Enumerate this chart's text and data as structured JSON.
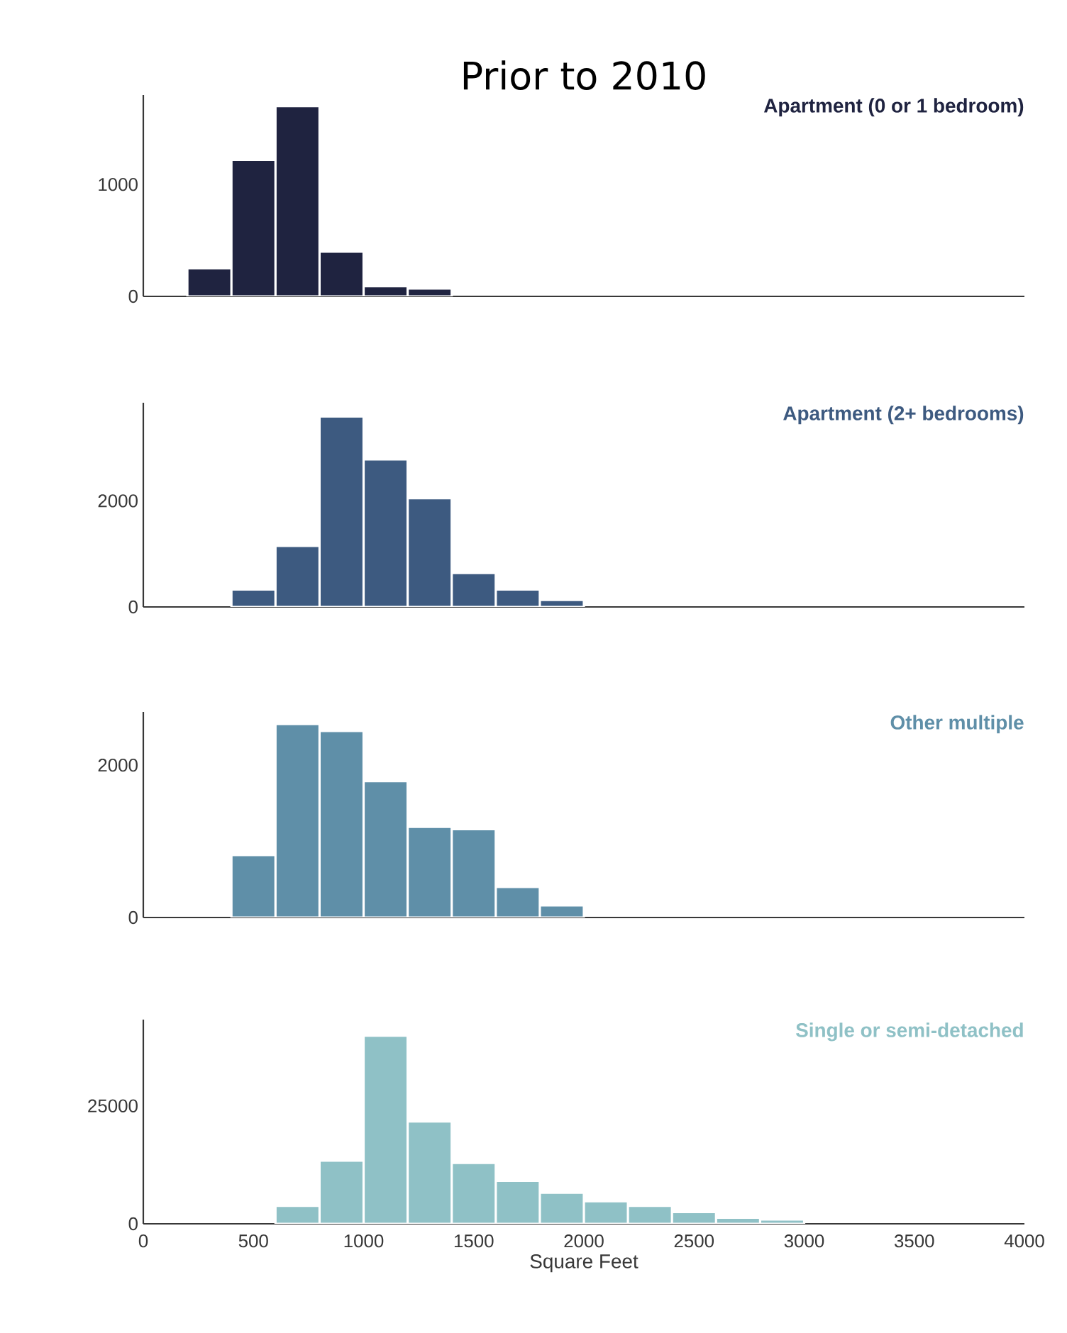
{
  "chart_data": [
    {
      "type": "histogram",
      "title": "Prior to 2010",
      "bins": [
        200,
        400,
        600,
        800,
        1000,
        1200,
        1400
      ],
      "series": [
        {
          "name": "Apartment (0 or 1 bedroom)",
          "color": "#1f2340",
          "values": [
            250,
            1220,
            1700,
            400,
            90,
            70
          ]
        }
      ],
      "xlim": [
        0,
        4000
      ],
      "ylim": [
        0,
        1800
      ],
      "yticks": [
        0,
        1000
      ],
      "tick_labels": "y",
      "legend": "top right",
      "grid": false
    },
    {
      "type": "histogram",
      "bins": [
        400,
        600,
        800,
        1000,
        1200,
        1400,
        1600,
        1800,
        2000
      ],
      "series": [
        {
          "name": "Apartment (2+ bedrooms)",
          "color": "#3d5a80",
          "values": [
            330,
            1150,
            3590,
            2780,
            2050,
            640,
            330,
            130
          ]
        }
      ],
      "xlim": [
        0,
        4000
      ],
      "ylim": [
        0,
        3850
      ],
      "yticks": [
        0,
        2000
      ],
      "tick_labels": "y",
      "legend": "top right",
      "grid": false
    },
    {
      "type": "histogram",
      "bins": [
        400,
        600,
        800,
        1000,
        1200,
        1400,
        1600,
        1800,
        2000
      ],
      "series": [
        {
          "name": "Other multiple",
          "color": "#5f8fa8",
          "values": [
            820,
            2540,
            2450,
            1790,
            1190,
            1160,
            400,
            160
          ]
        }
      ],
      "xlim": [
        0,
        4000
      ],
      "ylim": [
        0,
        2700
      ],
      "yticks": [
        0,
        2000
      ],
      "tick_labels": "y",
      "legend": "top right",
      "grid": false
    },
    {
      "type": "histogram",
      "xlabel": "Square Feet",
      "bins": [
        600,
        800,
        1000,
        1200,
        1400,
        1600,
        1800,
        2000,
        2200,
        2400,
        2600,
        2800,
        3000
      ],
      "series": [
        {
          "name": "Single or semi-detached",
          "color": "#8fc1c6",
          "values": [
            3800,
            13400,
            39900,
            21700,
            12900,
            9100,
            6600,
            4800,
            3800,
            2500,
            1300,
            900
          ]
        }
      ],
      "xlim": [
        0,
        4000
      ],
      "ylim": [
        0,
        43300
      ],
      "xticks": [
        0,
        500,
        1000,
        1500,
        2000,
        2500,
        3000,
        3500,
        4000
      ],
      "yticks": [
        0,
        25000
      ],
      "legend": "top right",
      "grid": false
    }
  ]
}
